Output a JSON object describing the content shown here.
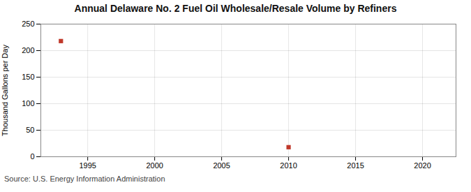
{
  "chart_data": {
    "type": "scatter",
    "title": "Annual Delaware No. 2 Fuel Oil Wholesale/Resale Volume by Refiners",
    "ylabel": "Thousand Gallons per Day",
    "annotations": [
      "Source: U.S. Energy Information Administration"
    ],
    "x": [
      1993,
      2010
    ],
    "values": [
      218,
      18
    ],
    "color": "#c0392b",
    "marker": "square",
    "xlim": [
      1991.5,
      2022.5
    ],
    "xticks": [
      1995,
      2000,
      2005,
      2010,
      2015,
      2020
    ],
    "ylim": [
      0,
      250
    ],
    "yticks": [
      0,
      50,
      100,
      150,
      200,
      250
    ],
    "grid": true
  }
}
